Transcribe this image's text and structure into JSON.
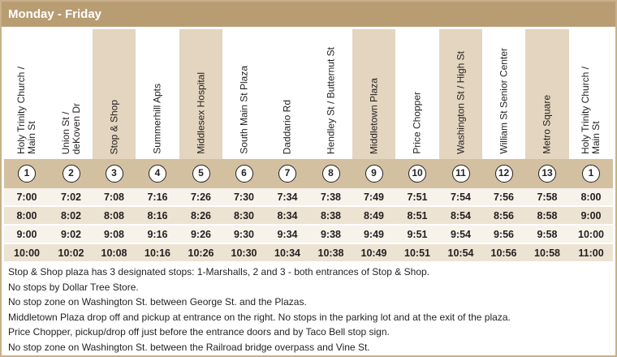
{
  "title": "Monday - Friday",
  "stops": [
    {
      "num": "1",
      "name": "Holy Trinity Church /\nMain St"
    },
    {
      "num": "2",
      "name": "Union St /\ndeKoven Dr"
    },
    {
      "num": "3",
      "name": "Stop & Shop"
    },
    {
      "num": "4",
      "name": "Summerhill Apts"
    },
    {
      "num": "5",
      "name": "Middlesex Hospital"
    },
    {
      "num": "6",
      "name": "South Main St Plaza"
    },
    {
      "num": "7",
      "name": "Daddario Rd"
    },
    {
      "num": "8",
      "name": "Hendley St / Butternut St"
    },
    {
      "num": "9",
      "name": "Middletown Plaza"
    },
    {
      "num": "10",
      "name": "Price Chopper"
    },
    {
      "num": "11",
      "name": "Washington St / High St"
    },
    {
      "num": "12",
      "name": "William St Senior Center"
    },
    {
      "num": "13",
      "name": "Metro Square"
    },
    {
      "num": "1",
      "name": "Holy Trinity Church /\nMain St"
    }
  ],
  "times": [
    [
      "7:00",
      "7:02",
      "7:08",
      "7:16",
      "7:26",
      "7:30",
      "7:34",
      "7:38",
      "7:49",
      "7:51",
      "7:54",
      "7:56",
      "7:58",
      "8:00"
    ],
    [
      "8:00",
      "8:02",
      "8:08",
      "8:16",
      "8:26",
      "8:30",
      "8:34",
      "8:38",
      "8:49",
      "8:51",
      "8:54",
      "8:56",
      "8:58",
      "9:00"
    ],
    [
      "9:00",
      "9:02",
      "9:08",
      "9:16",
      "9:26",
      "9:30",
      "9:34",
      "9:38",
      "9:49",
      "9:51",
      "9:54",
      "9:56",
      "9:58",
      "10:00"
    ],
    [
      "10:00",
      "10:02",
      "10:08",
      "10:16",
      "10:26",
      "10:30",
      "10:34",
      "10:38",
      "10:49",
      "10:51",
      "10:54",
      "10:56",
      "10:58",
      "11:00"
    ]
  ],
  "notes": [
    "Stop & Shop plaza has 3 designated stops:  1-Marshalls, 2 and 3 - both entrances of Stop & Shop.",
    "No stops by Dollar Tree Store.",
    "No stop zone on Washington St. between George St. and the Plazas.",
    "Middletown Plaza drop off and pickup at entrance on the right. No stops in the parking lot and at the exit of the plaza.",
    "Price Chopper, pickup/drop off just before the entrance doors and by Taco Bell stop sign.",
    "No stop zone on Washington St. between the Railroad bridge overpass and Vine St."
  ],
  "colors": {
    "title_bar": "#b89c72",
    "header_shade": "#e3d5bf",
    "number_row": "#d3c0a0",
    "row_light": "#f7f2ea",
    "row_dark": "#ede3d2"
  }
}
